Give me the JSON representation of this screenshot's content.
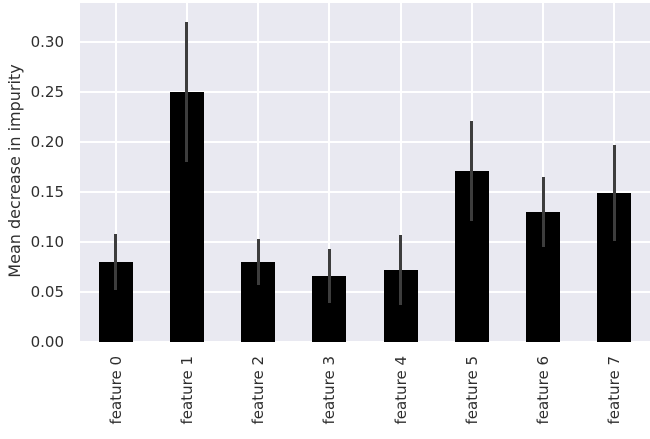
{
  "figure": {
    "background_color": "#ffffff",
    "plot_background_color": "#e9e9f1",
    "grid_color": "#ffffff",
    "bar_color": "#000000",
    "error_bar_color": "#3d3d3d",
    "text_color": "#2e2e2e"
  },
  "chart_data": {
    "type": "bar",
    "title": "",
    "xlabel": "",
    "ylabel": "Mean decrease in impurity",
    "categories": [
      "feature 0",
      "feature 1",
      "feature 2",
      "feature 3",
      "feature 4",
      "feature 5",
      "feature 6",
      "feature 7"
    ],
    "values": [
      0.08,
      0.25,
      0.08,
      0.066,
      0.072,
      0.171,
      0.13,
      0.149
    ],
    "errors": [
      0.028,
      0.07,
      0.023,
      0.027,
      0.035,
      0.05,
      0.035,
      0.048
    ],
    "yticks": [
      0.0,
      0.05,
      0.1,
      0.15,
      0.2,
      0.25,
      0.3
    ],
    "ytick_labels": [
      "0.00",
      "0.05",
      "0.10",
      "0.15",
      "0.20",
      "0.25",
      "0.30"
    ],
    "ylim": [
      0,
      0.339
    ],
    "grid": true,
    "grid_axes": "both",
    "legend": false,
    "x_tick_rotation": 90,
    "error_caps": false
  }
}
